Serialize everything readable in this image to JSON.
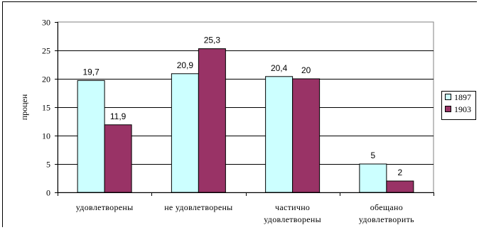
{
  "chart_data": {
    "type": "bar",
    "title": "",
    "xlabel": "",
    "ylabel": "процен",
    "categories": [
      [
        "удовлетворены"
      ],
      [
        "не удовлетворены"
      ],
      [
        "частично",
        "удовлетворены"
      ],
      [
        "обещано",
        "удовлетворить"
      ]
    ],
    "series": [
      {
        "name": "1897",
        "values": [
          19.7,
          20.9,
          20.4,
          5
        ],
        "labels": [
          "19,7",
          "20,9",
          "20,4",
          "5"
        ],
        "color": "#ccffff"
      },
      {
        "name": "1903",
        "values": [
          11.9,
          25.3,
          20,
          2
        ],
        "labels": [
          "11,9",
          "25,3",
          "20",
          "2"
        ],
        "color": "#993366"
      }
    ],
    "ylim": [
      0,
      30
    ],
    "yticks": [
      0,
      5,
      10,
      15,
      20,
      25,
      30
    ],
    "grid": true,
    "legend": "right"
  }
}
